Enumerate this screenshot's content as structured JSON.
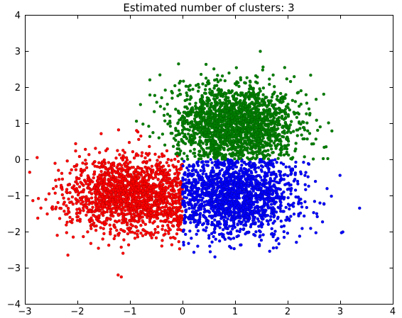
{
  "chart_data": {
    "type": "scatter",
    "title": "Estimated number of clusters: 3",
    "xlabel": "",
    "ylabel": "",
    "xlim": [
      -3,
      4
    ],
    "ylim": [
      -4,
      4
    ],
    "xticks": [
      -3,
      -2,
      -1,
      0,
      1,
      2,
      3,
      4
    ],
    "yticks": [
      -4,
      -3,
      -2,
      -1,
      0,
      1,
      2,
      3,
      4
    ],
    "grid": false,
    "legend": "none",
    "series": [
      {
        "color": "#ff0000",
        "cluster_center": [
          -1,
          -1
        ],
        "extent_x": [
          -2.8,
          0
        ],
        "extent_y": [
          -3.2,
          0.5
        ],
        "count": 1700
      },
      {
        "color": "#0000ff",
        "cluster_center": [
          1,
          -1
        ],
        "extent_x": [
          0,
          3.1
        ],
        "extent_y": [
          -3.2,
          0
        ],
        "count": 1700
      },
      {
        "color": "#008000",
        "cluster_center": [
          1,
          1
        ],
        "extent_x": [
          -0.5,
          3.3
        ],
        "extent_y": [
          0,
          3.0
        ],
        "count": 1900
      }
    ]
  }
}
